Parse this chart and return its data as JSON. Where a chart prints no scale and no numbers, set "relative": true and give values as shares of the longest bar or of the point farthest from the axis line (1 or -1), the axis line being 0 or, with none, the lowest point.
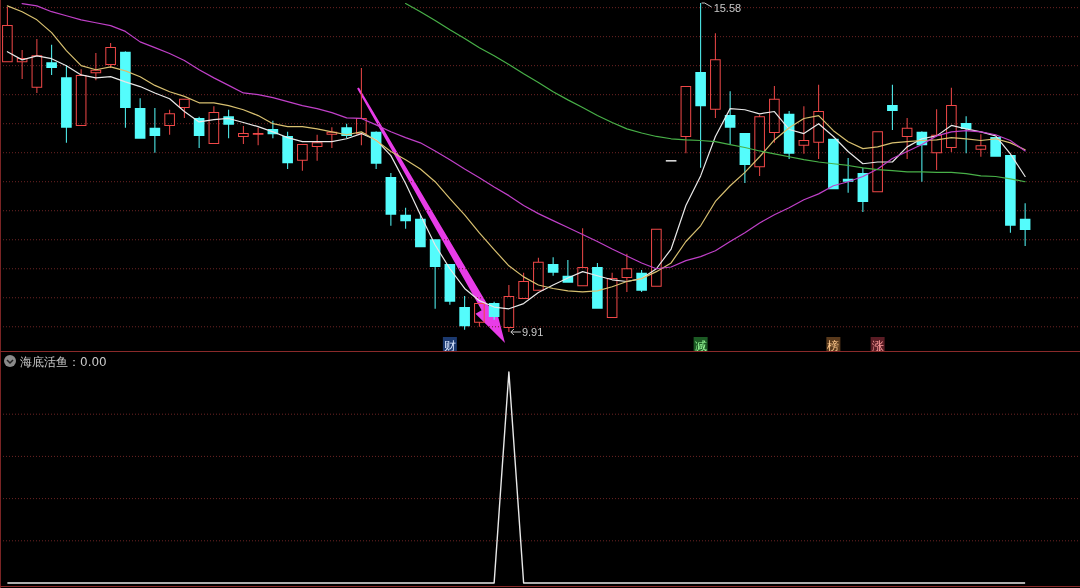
{
  "chart_data": [
    {
      "type": "candlestick",
      "categories": [
        null,
        null,
        null,
        null,
        null,
        null,
        null,
        null,
        null,
        null,
        null,
        null,
        null,
        null,
        null,
        null,
        null,
        null,
        null,
        null,
        null,
        null,
        null,
        null,
        null,
        null,
        null,
        null,
        null,
        null,
        null,
        null,
        null,
        null,
        null,
        null,
        null,
        null,
        null,
        null,
        null,
        null,
        null,
        null,
        null,
        null,
        null,
        null,
        null,
        null,
        null,
        null,
        null,
        null,
        null,
        null,
        null,
        null,
        null,
        null,
        null,
        null,
        null,
        null,
        null,
        null,
        null,
        null,
        null,
        null
      ],
      "ohlc": [
        [
          14.56,
          15.51,
          14.56,
          15.2
        ],
        [
          14.56,
          14.77,
          14.27,
          14.63
        ],
        [
          14.12,
          14.96,
          14.03,
          14.68
        ],
        [
          14.56,
          14.86,
          14.34,
          14.46
        ],
        [
          14.3,
          14.51,
          13.17,
          13.43
        ],
        [
          13.46,
          14.44,
          13.46,
          14.34
        ],
        [
          14.37,
          14.72,
          14.25,
          14.43
        ],
        [
          14.51,
          14.89,
          14.46,
          14.82
        ],
        [
          14.74,
          14.75,
          13.43,
          13.77
        ],
        [
          13.77,
          13.94,
          13.24,
          13.24
        ],
        [
          13.43,
          13.77,
          13.0,
          13.29
        ],
        [
          13.46,
          13.74,
          13.31,
          13.68
        ],
        [
          13.77,
          13.93,
          13.6,
          13.93
        ],
        [
          13.6,
          13.62,
          13.08,
          13.29
        ],
        [
          13.15,
          13.8,
          13.15,
          13.7
        ],
        [
          13.63,
          13.74,
          13.25,
          13.48
        ],
        [
          13.27,
          13.46,
          13.15,
          13.34
        ],
        [
          13.31,
          13.43,
          13.13,
          13.34
        ],
        [
          13.41,
          13.55,
          13.25,
          13.32
        ],
        [
          13.29,
          13.36,
          12.72,
          12.82
        ],
        [
          12.86,
          13.15,
          12.69,
          13.15
        ],
        [
          13.1,
          13.31,
          12.86,
          13.18
        ],
        [
          13.31,
          13.44,
          13.08,
          13.36
        ],
        [
          13.44,
          13.5,
          13.25,
          13.29
        ],
        [
          13.32,
          14.46,
          13.13,
          13.6
        ],
        [
          13.36,
          13.37,
          12.72,
          12.81
        ],
        [
          12.58,
          12.65,
          11.74,
          11.93
        ],
        [
          11.93,
          12.05,
          11.69,
          11.82
        ],
        [
          11.86,
          11.93,
          11.37,
          11.37
        ],
        [
          11.51,
          11.51,
          10.31,
          11.03
        ],
        [
          11.08,
          11.08,
          10.38,
          10.43
        ],
        [
          10.34,
          10.53,
          9.95,
          10.01
        ],
        [
          10.07,
          10.41,
          10.0,
          10.41
        ],
        [
          10.41,
          10.43,
          10.12,
          10.17
        ],
        [
          9.98,
          10.72,
          9.91,
          10.53
        ],
        [
          10.48,
          10.93,
          10.48,
          10.79
        ],
        [
          10.62,
          11.19,
          10.62,
          11.12
        ],
        [
          11.08,
          11.2,
          10.88,
          10.93
        ],
        [
          10.88,
          11.15,
          10.76,
          10.76
        ],
        [
          10.7,
          11.7,
          10.7,
          11.03
        ],
        [
          11.03,
          11.1,
          10.31,
          10.31
        ],
        [
          10.15,
          10.93,
          10.15,
          10.84
        ],
        [
          10.84,
          11.26,
          10.6,
          11.01
        ],
        [
          10.93,
          10.98,
          10.6,
          10.62
        ],
        [
          10.69,
          11.69,
          10.69,
          11.69
        ],
        [
          12.86,
          12.86,
          12.86,
          12.86
        ],
        [
          13.27,
          14.15,
          12.99,
          14.15
        ],
        [
          14.39,
          15.58,
          12.74,
          13.8
        ],
        [
          13.74,
          15.06,
          13.6,
          14.61
        ],
        [
          13.65,
          14.06,
          13.15,
          13.43
        ],
        [
          13.34,
          13.34,
          12.48,
          12.79
        ],
        [
          12.75,
          13.65,
          12.6,
          13.63
        ],
        [
          13.34,
          14.15,
          13.17,
          13.93
        ],
        [
          13.67,
          13.72,
          12.89,
          12.98
        ],
        [
          13.12,
          13.8,
          12.98,
          13.22
        ],
        [
          13.17,
          14.17,
          12.89,
          13.72
        ],
        [
          13.24,
          13.24,
          12.37,
          12.37
        ],
        [
          12.55,
          12.91,
          12.31,
          12.5
        ],
        [
          12.65,
          12.74,
          11.98,
          12.15
        ],
        [
          12.32,
          13.37,
          12.32,
          13.37
        ],
        [
          13.82,
          14.17,
          13.39,
          13.72
        ],
        [
          13.27,
          13.6,
          12.89,
          13.43
        ],
        [
          13.36,
          13.37,
          12.5,
          13.13
        ],
        [
          12.99,
          13.75,
          12.7,
          13.31
        ],
        [
          13.08,
          14.12,
          13.01,
          13.82
        ],
        [
          13.51,
          13.63,
          12.99,
          13.41
        ],
        [
          13.05,
          13.32,
          12.93,
          13.13
        ],
        [
          13.27,
          13.27,
          12.93,
          12.93
        ],
        [
          12.96,
          12.96,
          11.62,
          11.74
        ],
        [
          11.86,
          12.13,
          11.39,
          11.67
        ]
      ],
      "value_labels": [
        null,
        null,
        null,
        null,
        null,
        null,
        null,
        null,
        null,
        null,
        null,
        null,
        null,
        null,
        null,
        null,
        null,
        null,
        null,
        null,
        null,
        null,
        null,
        null,
        null,
        null,
        null,
        null,
        null,
        null,
        null,
        null,
        null,
        null,
        "9.91",
        null,
        null,
        null,
        null,
        null,
        null,
        null,
        null,
        null,
        null,
        null,
        null,
        "15.58",
        null,
        null,
        null,
        null,
        null,
        null,
        null,
        null,
        null,
        null,
        null,
        null,
        null,
        null,
        null,
        null,
        null,
        null,
        null,
        null,
        null,
        null
      ],
      "colors": [
        "#f04848",
        "#f04848",
        "#f04848",
        "#54fcfc",
        "#54fcfc",
        "#f04848",
        "#f04848",
        "#f04848",
        "#54fcfc",
        "#54fcfc",
        "#54fcfc",
        "#f04848",
        "#f04848",
        "#54fcfc",
        "#f04848",
        "#54fcfc",
        "#f04848",
        "#f04848",
        "#54fcfc",
        "#54fcfc",
        "#f04848",
        "#f04848",
        "#f04848",
        "#54fcfc",
        "#f04848",
        "#54fcfc",
        "#54fcfc",
        "#54fcfc",
        "#54fcfc",
        "#54fcfc",
        "#54fcfc",
        "#54fcfc",
        "#f04848",
        "#54fcfc",
        "#f04848",
        "#f04848",
        "#f04848",
        "#54fcfc",
        "#54fcfc",
        "#f04848",
        "#54fcfc",
        "#f04848",
        "#f04848",
        "#54fcfc",
        "#f04848",
        "#e8e8e8",
        "#f04848",
        "#54fcfc",
        "#f04848",
        "#54fcfc",
        "#54fcfc",
        "#f04848",
        "#f04848",
        "#54fcfc",
        "#f04848",
        "#f04848",
        "#54fcfc",
        "#54fcfc",
        "#54fcfc",
        "#f04848",
        "#54fcfc",
        "#f04848",
        "#54fcfc",
        "#f04848",
        "#f04848",
        "#54fcfc",
        "#f04848",
        "#54fcfc",
        "#54fcfc",
        "#54fcfc"
      ],
      "series": [
        {
          "type": "line",
          "color": "#e8e8e8",
          "values": [
            14.74,
            14.6,
            14.67,
            14.62,
            14.5,
            14.34,
            14.29,
            14.31,
            14.22,
            14.14,
            14.03,
            13.93,
            13.71,
            13.53,
            13.57,
            13.59,
            13.52,
            13.45,
            13.36,
            13.26,
            13.19,
            13.19,
            13.19,
            13.24,
            13.33,
            13.22,
            12.95,
            12.47,
            11.93,
            11.41,
            11.0,
            10.66,
            10.45,
            10.34,
            10.31,
            10.4,
            10.59,
            10.72,
            10.84,
            10.95,
            10.88,
            10.81,
            10.78,
            10.83,
            11.0,
            11.34,
            12.09,
            12.6,
            13.28,
            13.76,
            13.74,
            13.67,
            13.71,
            13.4,
            13.33,
            13.5,
            13.28,
            13.02,
            12.81,
            12.84,
            12.84,
            13.1,
            13.24,
            13.29,
            13.47,
            13.41,
            13.36,
            13.29,
            12.98,
            12.59
          ]
        },
        {
          "type": "line",
          "color": "#d8c070",
          "values": [
            15.53,
            15.43,
            15.29,
            15.07,
            14.76,
            14.5,
            14.43,
            14.48,
            14.41,
            14.31,
            14.16,
            14.05,
            13.97,
            13.86,
            13.86,
            13.81,
            13.74,
            13.64,
            13.5,
            13.45,
            13.45,
            13.41,
            13.36,
            13.31,
            13.36,
            13.21,
            13.02,
            12.88,
            12.72,
            12.5,
            12.21,
            11.93,
            11.62,
            11.33,
            11.05,
            10.86,
            10.72,
            10.66,
            10.62,
            10.6,
            10.62,
            10.69,
            10.78,
            10.83,
            10.95,
            11.1,
            11.47,
            11.74,
            12.16,
            12.43,
            12.66,
            12.93,
            13.22,
            13.43,
            13.59,
            13.64,
            13.38,
            13.19,
            13.07,
            13.1,
            13.17,
            13.19,
            13.21,
            13.22,
            13.26,
            13.24,
            13.21,
            13.24,
            13.17,
            13.05
          ]
        },
        {
          "type": "line",
          "color": "#c040c8",
          "values": [
            null,
            15.57,
            15.53,
            15.43,
            15.36,
            15.29,
            15.24,
            15.19,
            15.09,
            14.91,
            14.81,
            14.71,
            14.59,
            14.43,
            14.29,
            14.16,
            14.03,
            14.0,
            13.95,
            13.88,
            13.81,
            13.76,
            13.69,
            13.6,
            13.59,
            13.48,
            13.36,
            13.26,
            13.17,
            13.03,
            12.88,
            12.72,
            12.57,
            12.41,
            12.26,
            12.09,
            11.95,
            11.83,
            11.71,
            11.59,
            11.47,
            11.34,
            11.22,
            11.1,
            11.0,
            11.03,
            11.14,
            11.21,
            11.31,
            11.47,
            11.62,
            11.79,
            11.93,
            12.05,
            12.19,
            12.29,
            12.43,
            12.5,
            12.59,
            12.72,
            12.9,
            13.02,
            13.14,
            13.29,
            13.36,
            13.38,
            13.36,
            13.31,
            13.21,
            13.03
          ]
        },
        {
          "type": "line",
          "color": "#48b048",
          "values": [
            null,
            null,
            null,
            null,
            null,
            null,
            null,
            null,
            null,
            null,
            null,
            null,
            null,
            null,
            null,
            null,
            null,
            null,
            null,
            null,
            null,
            null,
            null,
            null,
            null,
            null,
            null,
            15.57,
            15.43,
            15.28,
            15.12,
            14.97,
            14.81,
            14.67,
            14.52,
            14.36,
            14.21,
            14.05,
            13.91,
            13.78,
            13.64,
            13.52,
            13.41,
            13.34,
            13.28,
            13.24,
            13.22,
            13.21,
            13.19,
            13.14,
            13.09,
            13.03,
            12.98,
            12.93,
            12.88,
            12.84,
            12.81,
            12.78,
            12.74,
            12.71,
            12.69,
            12.67,
            12.67,
            12.66,
            12.66,
            12.64,
            12.6,
            12.59,
            12.55,
            12.5
          ]
        }
      ],
      "ref_lines": [
        {
          "axis": "y",
          "value": 10,
          "color": "#6e2424",
          "line_style": "dotted"
        },
        {
          "axis": "y",
          "value": 10.5,
          "color": "#6e2424",
          "line_style": "dotted"
        },
        {
          "axis": "y",
          "value": 11,
          "color": "#6e2424",
          "line_style": "dotted"
        },
        {
          "axis": "y",
          "value": 11.5,
          "color": "#6e2424",
          "line_style": "dotted"
        },
        {
          "axis": "y",
          "value": 12,
          "color": "#6e2424",
          "line_style": "dotted"
        },
        {
          "axis": "y",
          "value": 12.5,
          "color": "#6e2424",
          "line_style": "dotted"
        },
        {
          "axis": "y",
          "value": 13,
          "color": "#6e2424",
          "line_style": "dotted"
        },
        {
          "axis": "y",
          "value": 13.5,
          "color": "#6e2424",
          "line_style": "dotted"
        },
        {
          "axis": "y",
          "value": 14,
          "color": "#6e2424",
          "line_style": "dotted"
        },
        {
          "axis": "y",
          "value": 14.5,
          "color": "#6e2424",
          "line_style": "dotted"
        },
        {
          "axis": "y",
          "value": 15,
          "color": "#6e2424",
          "line_style": "dotted"
        },
        {
          "axis": "y",
          "value": 15.5,
          "color": "#6e2424",
          "line_style": "dotted"
        }
      ],
      "annotations": [
        "财",
        "减",
        "榜",
        "涨"
      ]
    },
    {
      "type": "line",
      "title": "海底活鱼：0.00",
      "categories": [
        null,
        null,
        null,
        null,
        null,
        null,
        null,
        null,
        null,
        null,
        null,
        null,
        null,
        null,
        null,
        null,
        null,
        null,
        null,
        null,
        null,
        null,
        null,
        null,
        null,
        null,
        null,
        null,
        null,
        null,
        null,
        null,
        null,
        null,
        null,
        null,
        null,
        null,
        null,
        null,
        null,
        null,
        null,
        null,
        null,
        null,
        null,
        null,
        null,
        null,
        null,
        null,
        null,
        null,
        null,
        null,
        null,
        null,
        null,
        null,
        null,
        null,
        null,
        null,
        null,
        null,
        null,
        null,
        null,
        null
      ],
      "relative": true,
      "values": [
        0,
        0,
        0,
        0,
        0,
        0,
        0,
        0,
        0,
        0,
        0,
        0,
        0,
        0,
        0,
        0,
        0,
        0,
        0,
        0,
        0,
        0,
        0,
        0,
        0,
        0,
        0,
        0,
        0,
        0,
        0,
        0,
        0,
        0,
        1,
        0,
        0,
        0,
        0,
        0,
        0,
        0,
        0,
        0,
        0,
        0,
        0,
        0,
        0,
        0,
        0,
        0,
        0,
        0,
        0,
        0,
        0,
        0,
        0,
        0,
        0,
        0,
        0,
        0,
        0,
        0,
        0,
        0,
        0,
        0
      ],
      "color": "#e8e8e8",
      "ref_lines": [
        {
          "axis": "y",
          "value": 0.2,
          "color": "#6e2424",
          "line_style": "dotted"
        },
        {
          "axis": "y",
          "value": 0.4,
          "color": "#6e2424",
          "line_style": "dotted"
        },
        {
          "axis": "y",
          "value": 0.6,
          "color": "#6e2424",
          "line_style": "dotted"
        },
        {
          "axis": "y",
          "value": 0.8,
          "color": "#6e2424",
          "line_style": "dotted"
        }
      ]
    }
  ]
}
